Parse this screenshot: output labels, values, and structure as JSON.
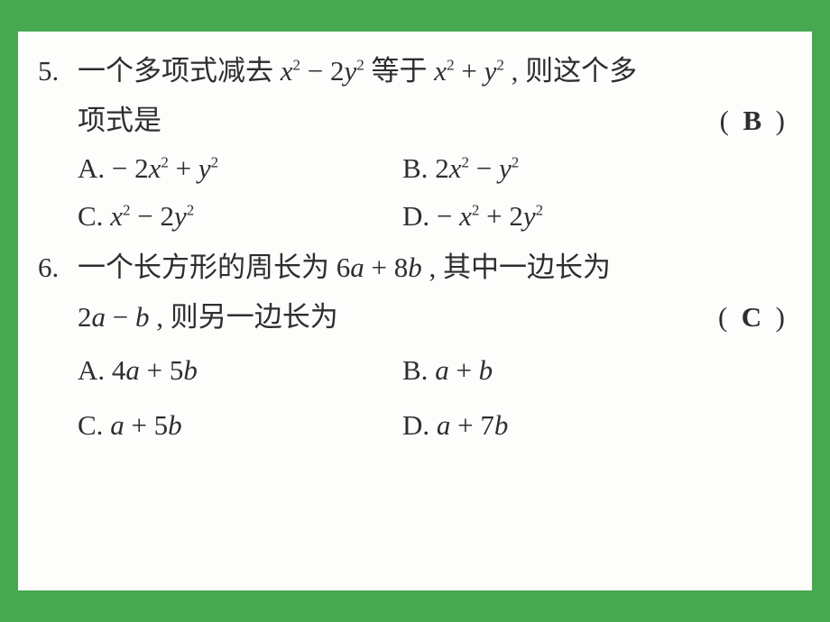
{
  "background_color": "#47a851",
  "page_color": "#fdfefb",
  "text_color": "#2f2d2d",
  "font_size_pt": 23,
  "q5": {
    "number": "5.",
    "stem_pre": "一个多项式减去 ",
    "expr1_html": "<i>x</i><sup>2</sup> − 2<i>y</i><sup>2</sup>",
    "stem_mid": " 等于 ",
    "expr2_html": "<i>x</i><sup>2</sup> + <i>y</i><sup>2</sup>",
    "stem_post": " , 则这个多",
    "line2_pre": "项式是",
    "answer": "B",
    "optA_label": "A. ",
    "optA_html": "− 2<i>x</i><sup>2</sup> + <i>y</i><sup>2</sup>",
    "optB_label": "B. ",
    "optB_html": "2<i>x</i><sup>2</sup> − <i>y</i><sup>2</sup>",
    "optC_label": "C. ",
    "optC_html": "<i>x</i><sup>2</sup> − 2<i>y</i><sup>2</sup>",
    "optD_label": "D. ",
    "optD_html": "− <i>x</i><sup>2</sup> + 2<i>y</i><sup>2</sup>"
  },
  "q6": {
    "number": "6.",
    "stem_pre": "一个长方形的周长为 ",
    "expr1_html": "6<i>a</i> + 8<i>b</i>",
    "stem_post": " , 其中一边长为",
    "line2_expr_html": "2<i>a</i> − <i>b</i>",
    "line2_post": " , 则另一边长为",
    "answer": "C",
    "optA_label": "A. ",
    "optA_html": "4<i>a</i> + 5<i>b</i>",
    "optB_label": "B. ",
    "optB_html": "<i>a</i> + <i>b</i>",
    "optC_label": "C. ",
    "optC_html": "<i>a</i> + 5<i>b</i>",
    "optD_label": "D. ",
    "optD_html": "<i>a</i> + 7<i>b</i>"
  }
}
